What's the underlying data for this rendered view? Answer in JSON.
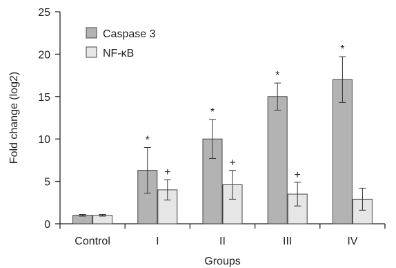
{
  "chart_data": {
    "type": "bar",
    "xlabel": "Groups",
    "ylabel": "Fold change (log2)",
    "ylim": [
      0,
      25
    ],
    "yticks": [
      0,
      5,
      10,
      15,
      20,
      25
    ],
    "grid": false,
    "legend_position": "top-left",
    "categories": [
      "Control",
      "I",
      "II",
      "III",
      "IV"
    ],
    "series": [
      {
        "name": "Caspase 3",
        "color": "#b3b3b3",
        "values": [
          1.0,
          6.3,
          10.0,
          15.0,
          17.0
        ],
        "error": [
          0.1,
          2.7,
          2.3,
          1.6,
          2.7
        ],
        "markers": [
          "",
          "*",
          "*",
          "*",
          "*"
        ]
      },
      {
        "name": "NF-κB",
        "color": "#e6e6e6",
        "values": [
          1.0,
          4.0,
          4.6,
          3.5,
          2.9
        ],
        "error": [
          0.1,
          1.2,
          1.7,
          1.4,
          1.3
        ],
        "markers": [
          "",
          "+",
          "+",
          "+",
          ""
        ]
      }
    ]
  }
}
